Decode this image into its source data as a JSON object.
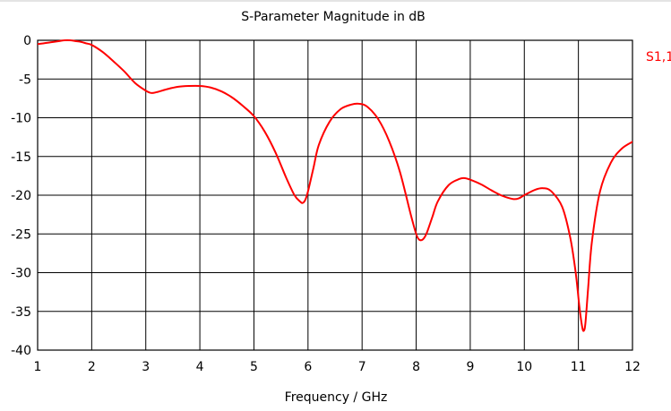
{
  "chart_data": {
    "type": "line",
    "title": "S-Parameter Magnitude in dB",
    "xlabel": "Frequency / GHz",
    "ylabel": "",
    "xlim": [
      1,
      12
    ],
    "ylim": [
      -40,
      0
    ],
    "x_ticks": [
      1,
      2,
      3,
      4,
      5,
      6,
      7,
      8,
      9,
      10,
      11,
      12
    ],
    "y_ticks": [
      0,
      -5,
      -10,
      -15,
      -20,
      -25,
      -30,
      -35,
      -40
    ],
    "grid": true,
    "legend": "right",
    "series": [
      {
        "name": "S1,1",
        "color": "#ff0000",
        "x": [
          1.0,
          1.1,
          1.2,
          1.3,
          1.4,
          1.5,
          1.6,
          1.7,
          1.8,
          1.9,
          2.0,
          2.2,
          2.4,
          2.6,
          2.8,
          3.0,
          3.1,
          3.2,
          3.4,
          3.6,
          3.8,
          4.0,
          4.2,
          4.4,
          4.6,
          4.8,
          5.0,
          5.2,
          5.4,
          5.6,
          5.75,
          5.85,
          5.9,
          5.95,
          6.0,
          6.1,
          6.2,
          6.4,
          6.6,
          6.8,
          6.95,
          7.1,
          7.3,
          7.5,
          7.7,
          7.9,
          8.0,
          8.05,
          8.1,
          8.15,
          8.2,
          8.3,
          8.4,
          8.6,
          8.8,
          8.9,
          9.0,
          9.2,
          9.4,
          9.6,
          9.8,
          9.9,
          10.0,
          10.2,
          10.35,
          10.5,
          10.7,
          10.85,
          10.95,
          11.02,
          11.07,
          11.1,
          11.13,
          11.18,
          11.25,
          11.4,
          11.6,
          11.8,
          12.0
        ],
        "y": [
          -0.5,
          -0.4,
          -0.3,
          -0.2,
          -0.1,
          0.0,
          0.0,
          -0.1,
          -0.2,
          -0.4,
          -0.6,
          -1.5,
          -2.7,
          -4.0,
          -5.5,
          -6.5,
          -6.8,
          -6.7,
          -6.3,
          -6.0,
          -5.9,
          -5.9,
          -6.1,
          -6.6,
          -7.4,
          -8.5,
          -9.8,
          -11.8,
          -14.5,
          -17.8,
          -20.0,
          -20.8,
          -21.0,
          -20.6,
          -19.5,
          -16.5,
          -13.5,
          -10.5,
          -8.9,
          -8.3,
          -8.2,
          -8.6,
          -10.2,
          -13.0,
          -17.0,
          -22.5,
          -25.0,
          -25.7,
          -25.8,
          -25.5,
          -24.8,
          -22.8,
          -20.8,
          -18.7,
          -17.9,
          -17.8,
          -18.0,
          -18.6,
          -19.4,
          -20.1,
          -20.5,
          -20.4,
          -20.0,
          -19.3,
          -19.1,
          -19.5,
          -21.5,
          -25.5,
          -30.0,
          -34.5,
          -37.0,
          -37.5,
          -36.5,
          -32.0,
          -26.0,
          -19.5,
          -15.8,
          -14.0,
          -13.1
        ]
      }
    ]
  }
}
